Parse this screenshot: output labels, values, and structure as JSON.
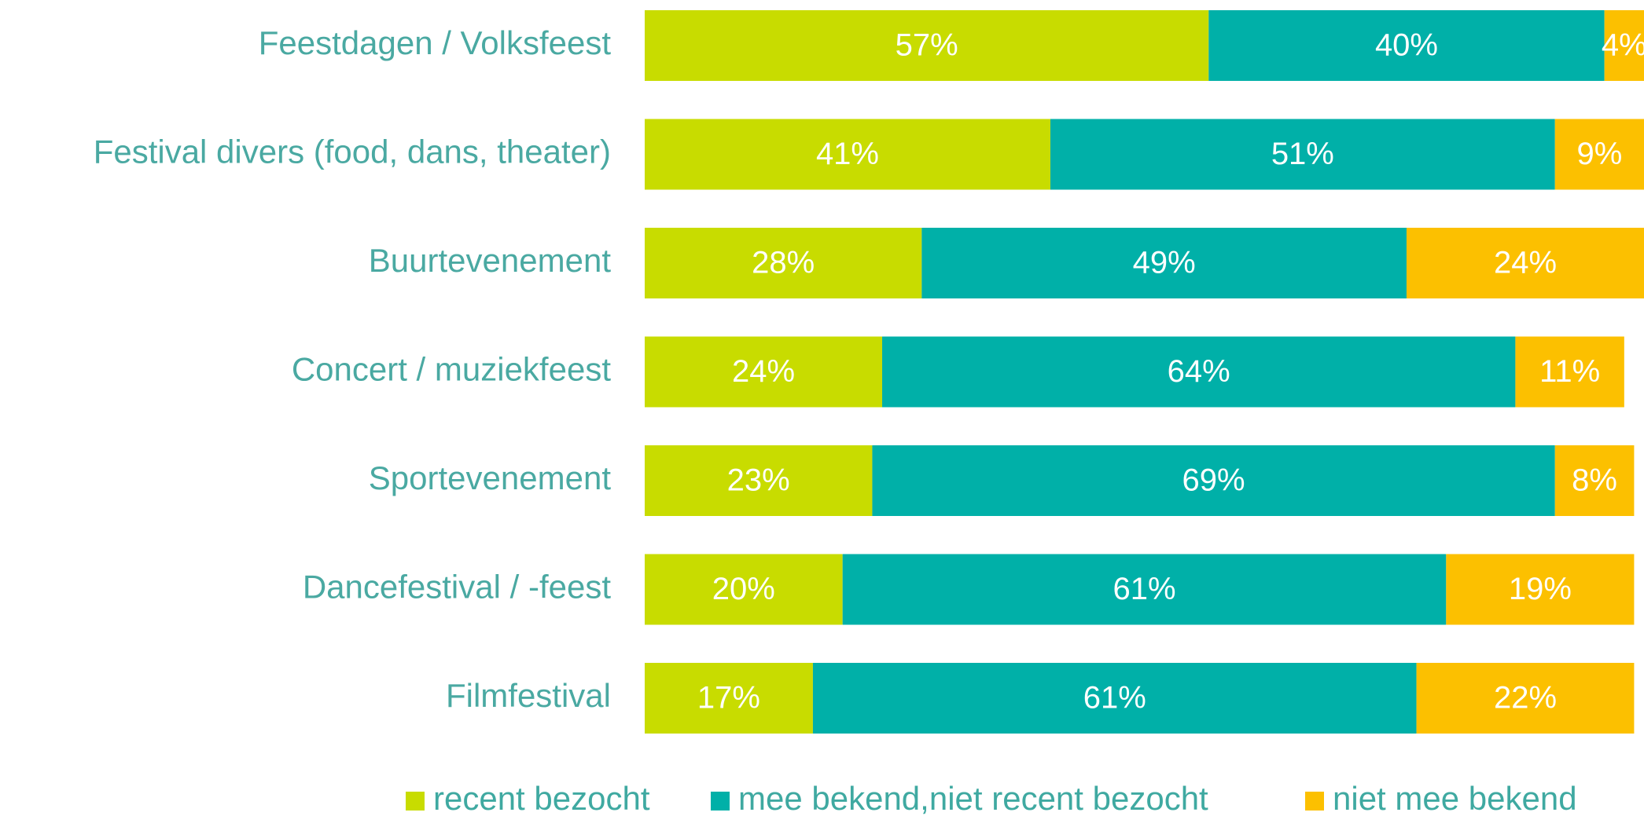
{
  "chart_data": {
    "type": "stacked_barh",
    "categories": [
      "Feestdagen / Volksfeest",
      "Festival divers (food, dans, theater)",
      "Buurtevenement",
      "Concert / muziekfeest",
      "Sportevenement",
      "Dancefestival / -feest",
      "Filmfestival"
    ],
    "series": [
      {
        "name": "recent bezocht",
        "color": "#c8dc00",
        "values": [
          57,
          41,
          28,
          24,
          23,
          20,
          17
        ],
        "value_labels": [
          "57%",
          "41%",
          "28%",
          "24%",
          "23%",
          "20%",
          "17%"
        ]
      },
      {
        "name": "mee bekend,niet recent bezocht",
        "color": "#00b0a8",
        "values": [
          40,
          51,
          49,
          64,
          69,
          61,
          61
        ],
        "value_labels": [
          "40%",
          "51%",
          "49%",
          "64%",
          "69%",
          "61%",
          "61%"
        ]
      },
      {
        "name": "niet mee bekend",
        "color": "#fcc000",
        "values": [
          4,
          9,
          24,
          11,
          8,
          19,
          22
        ],
        "value_labels": [
          "4%",
          "9%",
          "24%",
          "11%",
          "8%",
          "19%",
          "22%"
        ]
      }
    ],
    "legend": "bottom"
  }
}
